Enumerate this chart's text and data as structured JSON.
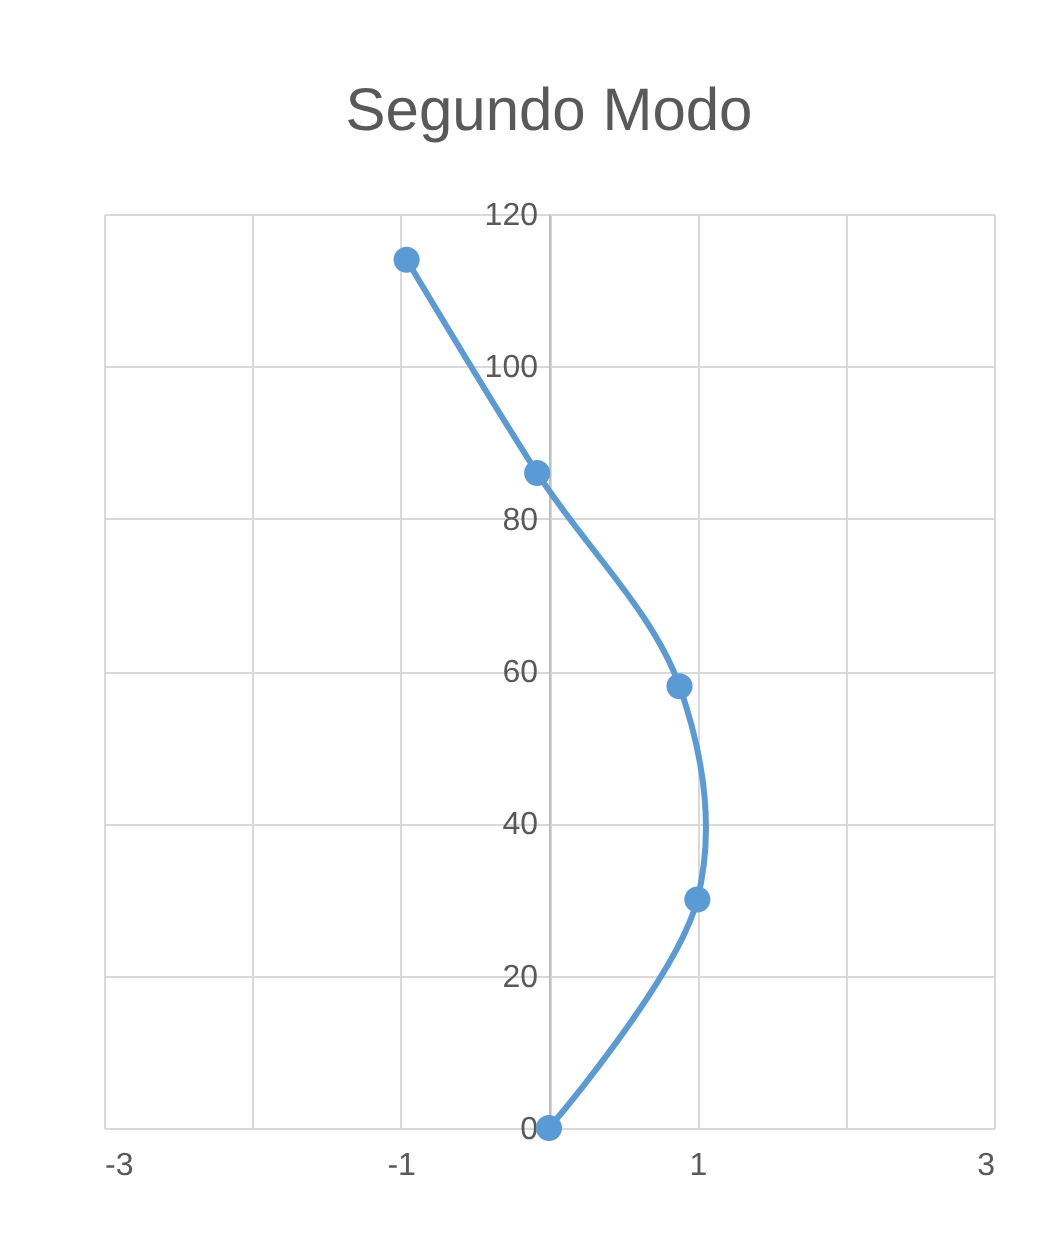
{
  "chart_data": {
    "type": "line",
    "title": "Segundo Modo",
    "x": [
      0,
      1.0,
      0.88,
      -0.08,
      -0.96
    ],
    "series": [
      {
        "color": "#5b9bd5",
        "values": [
          0,
          30,
          58,
          86,
          114
        ]
      }
    ],
    "xlim": [
      -3,
      3
    ],
    "xticks": [
      -3,
      {
        "value": -2,
        "label": null
      },
      -1,
      {
        "value": 0,
        "label": null
      },
      1,
      {
        "value": 2,
        "label": null
      },
      3
    ],
    "ylim": [
      0,
      120
    ],
    "yticks": [
      0,
      20,
      40,
      60,
      80,
      100,
      120
    ],
    "grid": true,
    "marker": "circle",
    "line_style": "solid"
  }
}
